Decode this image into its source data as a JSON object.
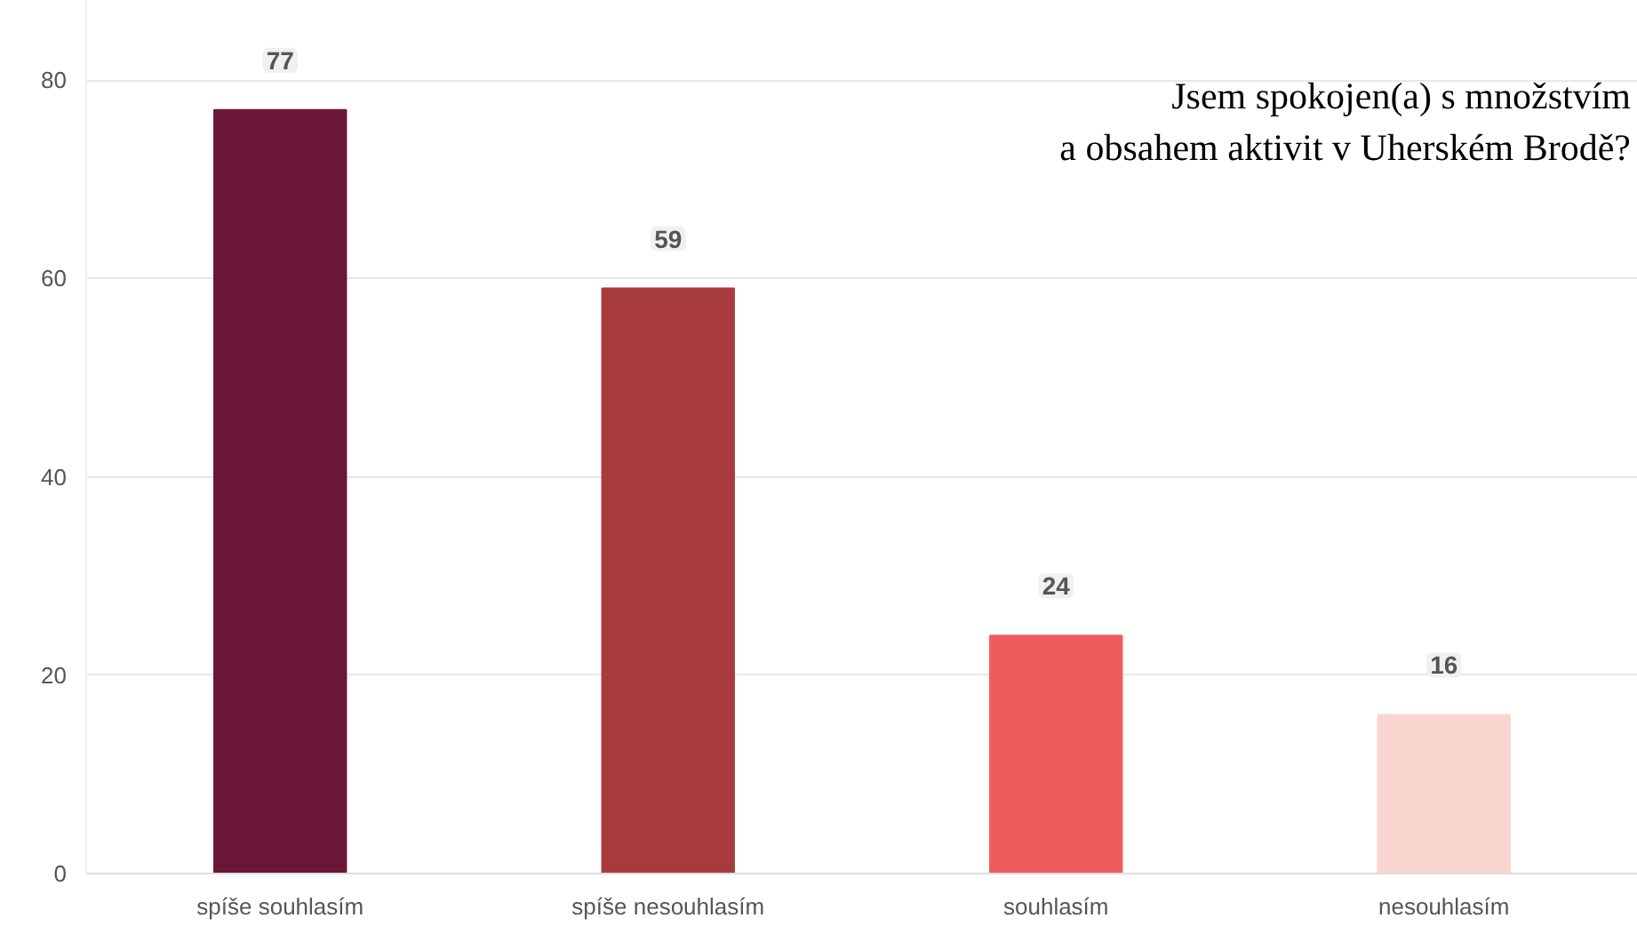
{
  "chart_data": {
    "type": "bar",
    "title": "Jsem spokojen(a) s množstvím\na obsahem aktivit v Uherském Brodě?",
    "categories": [
      "spíše souhlasím",
      "spíše nesouhlasím",
      "souhlasím",
      "nesouhlasím"
    ],
    "values": [
      77,
      59,
      24,
      16
    ],
    "colors": [
      "#6b1737",
      "#a83c3d",
      "#ef5c5e",
      "#f8d5cf"
    ],
    "ylim": [
      0,
      88
    ],
    "yticks": [
      0,
      20,
      40,
      60,
      80
    ],
    "grid": "y",
    "data_labels": true
  }
}
